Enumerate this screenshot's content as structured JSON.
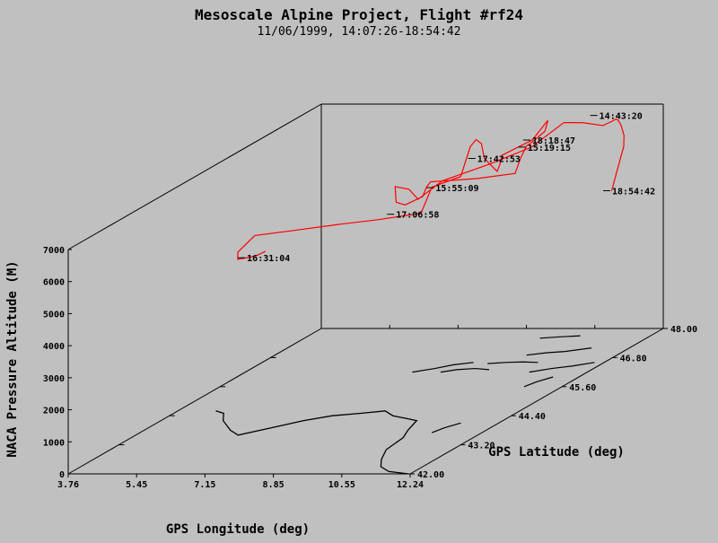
{
  "chart_data": {
    "type": "line",
    "projection": "3d",
    "title": "Mesoscale Alpine Project, Flight #rf24",
    "subtitle": "11/06/1999, 14:07:26-18:54:42",
    "xlabel": "GPS Longitude (deg)",
    "ylabel": "GPS Latitude (deg)",
    "zlabel": "NACA Pressure Altitude (M)",
    "xlim": [
      3.76,
      12.24
    ],
    "ylim": [
      42.0,
      48.0
    ],
    "zlim": [
      0,
      7000
    ],
    "x_ticks": [
      "3.76",
      "5.45",
      "7.15",
      "8.85",
      "10.55",
      "12.24"
    ],
    "y_ticks": [
      "42.00",
      "43.20",
      "44.40",
      "45.60",
      "46.80",
      "48.00"
    ],
    "z_ticks": [
      "0",
      "1000",
      "2000",
      "3000",
      "4000",
      "5000",
      "6000",
      "7000"
    ],
    "grid": false,
    "series_color": "#ff0000",
    "series": [
      {
        "x": [
          11.38,
          11.49,
          11.7,
          11.79,
          11.82,
          11.84,
          11.85,
          11.78,
          11.6,
          11.2,
          10.78,
          10.0,
          9.0,
          8.0,
          7.5,
          7.4,
          7.42,
          7.5,
          7.7,
          8.05,
          8.15,
          8.3,
          8.9,
          9.6,
          10.45,
          10.48,
          10.52,
          10.6,
          10.75,
          10.78,
          10.7,
          10.4,
          9.62,
          9.55,
          9.5,
          9.32,
          9.3,
          9.2,
          9.15,
          9.1,
          8.7,
          8.45,
          7.4,
          6.5,
          5.5,
          4.6,
          4.62,
          4.72,
          5.0,
          5.1,
          5.2
        ],
        "y": [
          47.6,
          47.62,
          47.58,
          47.5,
          47.4,
          47.32,
          47.26,
          47.22,
          47.18,
          47.1,
          47.04,
          47.02,
          46.98,
          46.82,
          46.72,
          46.6,
          46.25,
          46.2,
          46.22,
          46.3,
          46.3,
          46.25,
          46.1,
          46.12,
          46.2,
          46.3,
          46.4,
          46.52,
          46.62,
          46.66,
          46.68,
          46.66,
          46.68,
          46.7,
          46.68,
          46.55,
          46.5,
          46.47,
          46.38,
          46.2,
          45.9,
          45.88,
          45.88,
          45.82,
          45.7,
          45.62,
          45.2,
          45.1,
          45.12,
          45.2,
          45.3
        ],
        "z": [
          4600,
          5200,
          6000,
          6400,
          6800,
          7000,
          7100,
          7050,
          6950,
          7100,
          7150,
          6400,
          5900,
          5500,
          5000,
          5400,
          5750,
          5300,
          5200,
          5400,
          5700,
          5900,
          6050,
          6100,
          6200,
          6600,
          6900,
          7000,
          7200,
          7500,
          7400,
          6900,
          6400,
          6100,
          5900,
          6400,
          6900,
          7050,
          6900,
          6100,
          6000,
          5200,
          5000,
          4900,
          4800,
          4700,
          4500,
          4350,
          4400,
          4400,
          4450
        ]
      }
    ],
    "time_labels": [
      {
        "text": "14:43:20",
        "x": 11.28,
        "y": 47.4,
        "z": 7100
      },
      {
        "text": "15:19:15",
        "x": 9.9,
        "y": 47.02,
        "z": 6400
      },
      {
        "text": "15:55:09",
        "x": 7.85,
        "y": 46.8,
        "z": 5300
      },
      {
        "text": "16:31:04",
        "x": 4.95,
        "y": 45.1,
        "z": 4400
      },
      {
        "text": "17:06:58",
        "x": 7.6,
        "y": 46.1,
        "z": 5000
      },
      {
        "text": "17:42:53",
        "x": 9.28,
        "y": 46.42,
        "z": 6500
      },
      {
        "text": "18:18:47",
        "x": 10.4,
        "y": 46.65,
        "z": 6900
      },
      {
        "text": "18:54:42",
        "x": 11.39,
        "y": 47.6,
        "z": 4600
      }
    ]
  }
}
